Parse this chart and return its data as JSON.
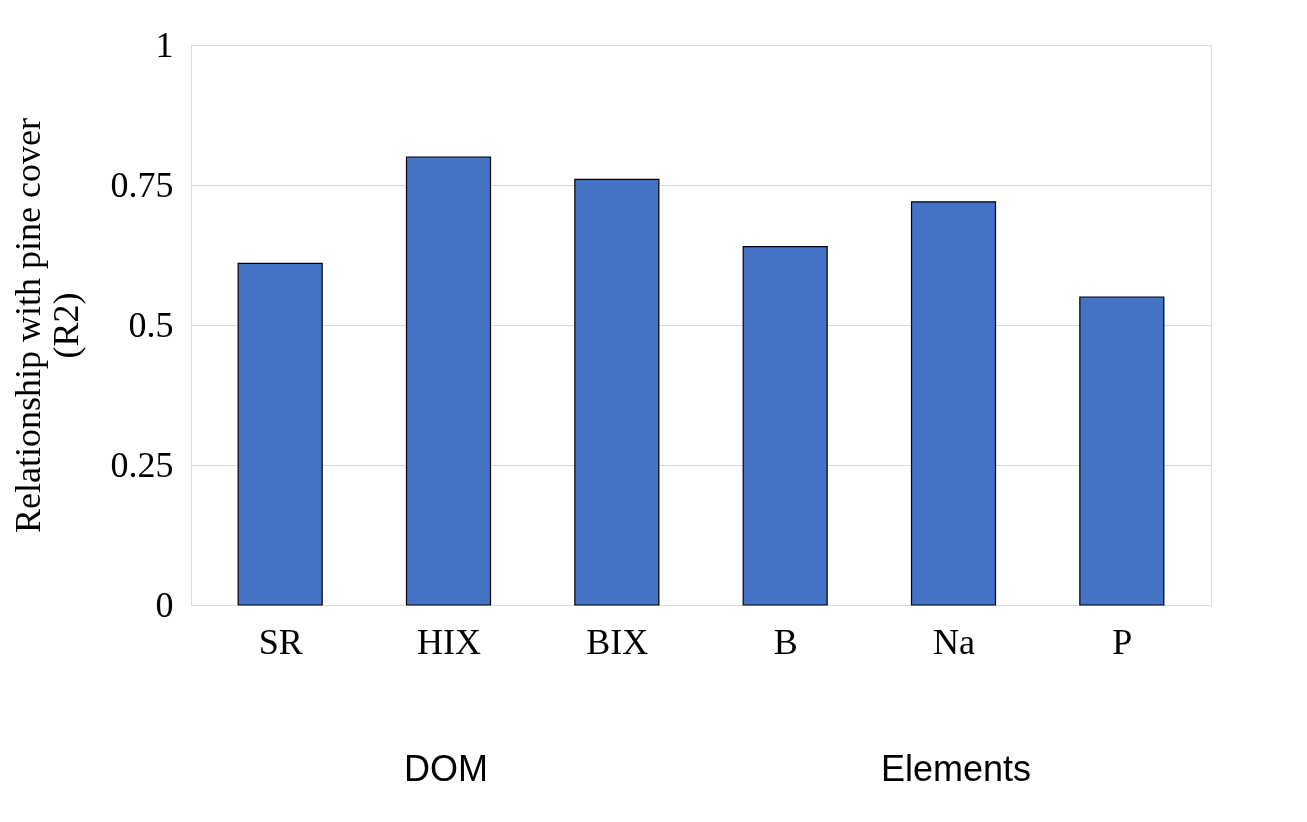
{
  "chart_data": {
    "type": "bar",
    "categories": [
      "SR",
      "HIX",
      "BIX",
      "B",
      "Na",
      "P"
    ],
    "values": [
      0.61,
      0.8,
      0.76,
      0.64,
      0.72,
      0.55
    ],
    "color": "#4472c4",
    "ylabel": "Relationship with pine cover (R2)",
    "ylim": [
      0,
      1
    ],
    "yticks": [
      0,
      0.25,
      0.5,
      0.75,
      1
    ],
    "grid": "y",
    "annotations": [
      "DOM",
      "Elements"
    ]
  }
}
